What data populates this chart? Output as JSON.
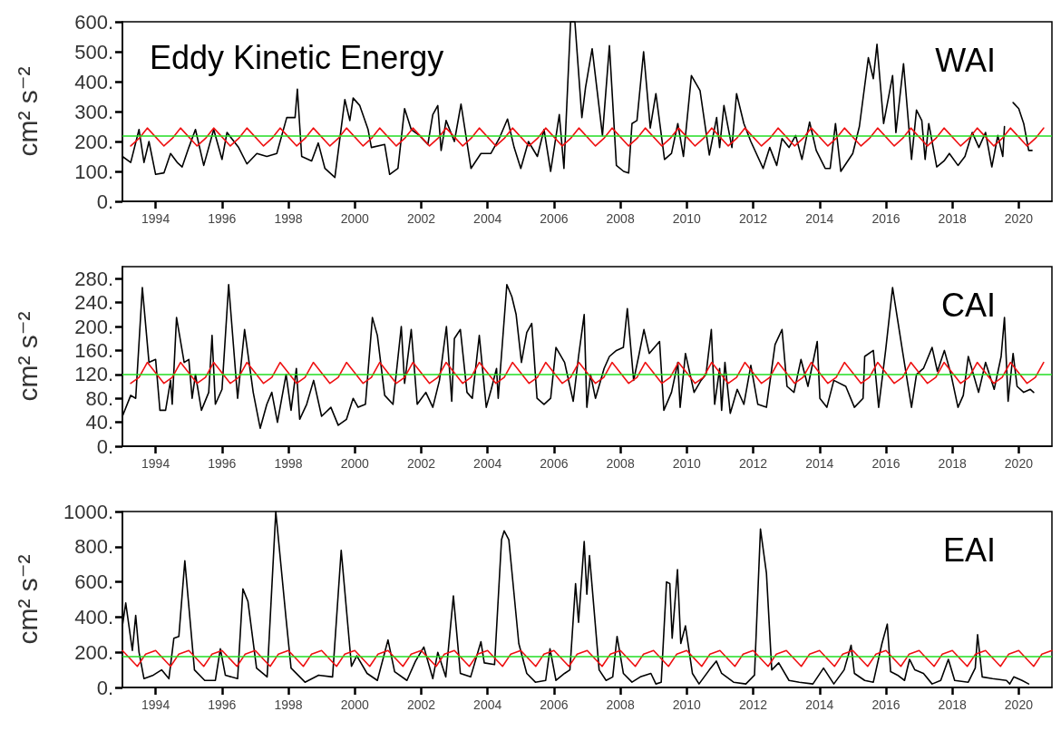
{
  "chart_data": [
    {
      "type": "line",
      "title": "Eddy Kinetic Energy",
      "ylabel": "cm² s⁻²",
      "annotations": [
        "WAI"
      ],
      "xlim": [
        1993,
        2021
      ],
      "xticks": [
        1994,
        1996,
        1998,
        2000,
        2002,
        2004,
        2006,
        2008,
        2010,
        2012,
        2014,
        2016,
        2018,
        2020
      ],
      "ylim": [
        0,
        600
      ],
      "yticks": [
        {
          "value": 0,
          "label": "0."
        },
        {
          "value": 100,
          "label": "100."
        },
        {
          "value": 200,
          "label": "200."
        },
        {
          "value": 300,
          "label": "300."
        },
        {
          "value": 400,
          "label": "400."
        },
        {
          "value": 500,
          "label": "500."
        },
        {
          "value": 600,
          "label": "600."
        }
      ],
      "ref_lines": [
        {
          "axis": "y",
          "value": 220,
          "color": "#22dd22"
        }
      ],
      "series": [
        {
          "color": "#000000",
          "x": [
            1993.0,
            1993.25,
            1993.5,
            1993.65,
            1993.8,
            1994.0,
            1994.25,
            1994.45,
            1994.65,
            1994.8,
            1995.0,
            1995.2,
            1995.45,
            1995.75,
            1996.0,
            1996.15,
            1996.5,
            1996.75,
            1997.05,
            1997.35,
            1997.65,
            1997.95,
            1998.2,
            1998.27,
            1998.4,
            1998.7,
            1998.9,
            1999.1,
            1999.4,
            1999.7,
            1999.85,
            1999.95,
            2000.15,
            2000.4,
            2000.5,
            2000.9,
            2001.05,
            2001.3,
            2001.5,
            2001.7,
            2001.95,
            2002.2,
            2002.35,
            2002.5,
            2002.6,
            2002.75,
            2003.0,
            2003.2,
            2003.5,
            2003.8,
            2004.1,
            2004.35,
            2004.6,
            2004.8,
            2005.0,
            2005.23,
            2005.5,
            2005.7,
            2005.9,
            2006.16,
            2006.3,
            2006.5,
            2006.63,
            2006.84,
            2006.95,
            2007.15,
            2007.46,
            2007.67,
            2007.88,
            2008.1,
            2008.25,
            2008.35,
            2008.5,
            2008.7,
            2008.9,
            2009.07,
            2009.33,
            2009.54,
            2009.73,
            2009.9,
            2010.14,
            2010.4,
            2010.68,
            2010.9,
            2010.99,
            2011.12,
            2011.36,
            2011.5,
            2011.72,
            2011.93,
            2012.3,
            2012.5,
            2012.71,
            2012.87,
            2013.08,
            2013.28,
            2013.47,
            2013.7,
            2013.9,
            2014.17,
            2014.32,
            2014.48,
            2014.64,
            2015.0,
            2015.2,
            2015.47,
            2015.62,
            2015.73,
            2015.93,
            2016.2,
            2016.3,
            2016.53,
            2016.77,
            2016.92,
            2017.08,
            2017.18,
            2017.29,
            2017.53,
            2017.75,
            2017.91,
            2018.17,
            2018.38,
            2018.6,
            2018.8,
            2019.0,
            2019.19,
            2019.37,
            2019.52,
            2019.57,
            2019.7,
            2019.83,
            2020.0,
            2020.15,
            2020.3,
            2020.4
          ],
          "values": [
            150,
            130,
            240,
            130,
            200,
            90,
            95,
            160,
            130,
            115,
            180,
            240,
            120,
            240,
            140,
            230,
            180,
            125,
            160,
            150,
            160,
            280,
            280,
            375,
            150,
            135,
            195,
            110,
            80,
            340,
            270,
            345,
            320,
            240,
            180,
            190,
            90,
            110,
            310,
            240,
            220,
            190,
            290,
            320,
            170,
            270,
            200,
            325,
            110,
            160,
            160,
            210,
            275,
            180,
            110,
            200,
            150,
            240,
            100,
            290,
            110,
            600,
            600,
            280,
            380,
            510,
            220,
            520,
            120,
            100,
            95,
            260,
            270,
            500,
            245,
            360,
            140,
            160,
            260,
            150,
            420,
            370,
            155,
            280,
            180,
            320,
            180,
            360,
            260,
            200,
            110,
            180,
            120,
            210,
            180,
            220,
            140,
            265,
            170,
            110,
            110,
            260,
            100,
            160,
            250,
            480,
            410,
            525,
            260,
            420,
            230,
            460,
            140,
            305,
            270,
            140,
            260,
            115,
            135,
            160,
            120,
            150,
            230,
            180,
            230,
            115,
            220,
            150,
            250,
            null,
            330,
            310,
            260,
            170,
            170
          ]
        },
        {
          "color": "#ee1111",
          "x": [
            1993.25,
            1993.5,
            1993.75,
            1994.25,
            1994.5,
            1994.75,
            1995.25,
            1995.5,
            1995.75,
            1996.25,
            1996.5,
            1996.75,
            1997.25,
            1997.5,
            1997.75,
            1998.25,
            1998.5,
            1998.75,
            1999.25,
            1999.5,
            1999.75,
            2000.25,
            2000.5,
            2000.75,
            2001.25,
            2001.5,
            2001.75,
            2002.25,
            2002.5,
            2002.75,
            2003.25,
            2003.5,
            2003.75,
            2004.25,
            2004.5,
            2004.75,
            2005.25,
            2005.5,
            2005.75,
            2006.25,
            2006.5,
            2006.75,
            2007.25,
            2007.5,
            2007.75,
            2008.25,
            2008.5,
            2008.75,
            2009.25,
            2009.5,
            2009.75,
            2010.25,
            2010.5,
            2010.75,
            2011.25,
            2011.5,
            2011.75,
            2012.25,
            2012.5,
            2012.75,
            2013.25,
            2013.5,
            2013.75,
            2014.25,
            2014.5,
            2014.75,
            2015.25,
            2015.5,
            2015.75,
            2016.25,
            2016.5,
            2016.75,
            2017.25,
            2017.5,
            2017.75,
            2018.25,
            2018.5,
            2018.75,
            2019.25,
            2019.5,
            2019.75,
            2020.25,
            2020.5,
            2020.75
          ],
          "values": [
            185,
            210,
            245,
            185,
            210,
            245,
            185,
            210,
            245,
            185,
            210,
            245,
            185,
            210,
            245,
            185,
            210,
            245,
            185,
            210,
            245,
            185,
            210,
            245,
            185,
            210,
            245,
            185,
            210,
            245,
            185,
            210,
            245,
            185,
            210,
            245,
            185,
            210,
            245,
            185,
            210,
            245,
            185,
            210,
            245,
            185,
            210,
            245,
            185,
            210,
            245,
            185,
            210,
            245,
            185,
            210,
            245,
            185,
            210,
            245,
            185,
            210,
            245,
            185,
            210,
            245,
            185,
            210,
            245,
            185,
            210,
            245,
            185,
            210,
            245,
            185,
            210,
            245,
            185,
            210,
            245,
            185,
            210,
            245
          ]
        }
      ]
    },
    {
      "type": "line",
      "ylabel": "cm² s⁻²",
      "annotations": [
        "CAI"
      ],
      "xlim": [
        1993,
        2021
      ],
      "xticks": [
        1994,
        1996,
        1998,
        2000,
        2002,
        2004,
        2006,
        2008,
        2010,
        2012,
        2014,
        2016,
        2018,
        2020
      ],
      "ylim": [
        0,
        300
      ],
      "yticks": [
        {
          "value": 0,
          "label": "0."
        },
        {
          "value": 40,
          "label": "40."
        },
        {
          "value": 80,
          "label": "80."
        },
        {
          "value": 120,
          "label": "120."
        },
        {
          "value": 160,
          "label": "160."
        },
        {
          "value": 200,
          "label": "200."
        },
        {
          "value": 240,
          "label": "240."
        },
        {
          "value": 280,
          "label": "280."
        }
      ],
      "ref_lines": [
        {
          "axis": "y",
          "value": 120,
          "color": "#22dd22"
        }
      ],
      "series": [
        {
          "color": "#000000",
          "x": [
            1993.0,
            1993.25,
            1993.4,
            1993.6,
            1993.8,
            1994.0,
            1994.13,
            1994.3,
            1994.45,
            1994.5,
            1994.63,
            1994.86,
            1995.0,
            1995.1,
            1995.2,
            1995.38,
            1995.6,
            1995.7,
            1995.8,
            1996.0,
            1996.2,
            1996.47,
            1996.68,
            1996.94,
            1997.15,
            1997.35,
            1997.5,
            1997.67,
            1997.8,
            1997.93,
            1998.08,
            1998.24,
            1998.34,
            1998.55,
            1998.76,
            1999.0,
            1999.28,
            1999.5,
            1999.75,
            1999.95,
            2000.1,
            2000.32,
            2000.53,
            2000.68,
            2000.9,
            2001.15,
            2001.4,
            2001.5,
            2001.7,
            2001.88,
            2002.14,
            2002.35,
            2002.55,
            2002.76,
            2002.92,
            2003.0,
            2003.18,
            2003.38,
            2003.54,
            2003.75,
            2003.96,
            2004.11,
            2004.27,
            2004.32,
            2004.58,
            2004.73,
            2004.86,
            2005.02,
            2005.18,
            2005.33,
            2005.49,
            2005.7,
            2005.9,
            2006.06,
            2006.32,
            2006.58,
            2006.74,
            2006.91,
            2006.99,
            2007.1,
            2007.25,
            2007.51,
            2007.67,
            2007.88,
            2008.09,
            2008.21,
            2008.4,
            2008.55,
            2008.71,
            2008.87,
            2009.18,
            2009.31,
            2009.54,
            2009.73,
            2009.8,
            2009.96,
            2010.22,
            2010.43,
            2010.58,
            2010.74,
            2010.84,
            2010.99,
            2011.05,
            2011.15,
            2011.31,
            2011.52,
            2011.72,
            2011.93,
            2012.14,
            2012.4,
            2012.66,
            2012.87,
            2013.02,
            2013.23,
            2013.44,
            2013.65,
            2013.93,
            2014.01,
            2014.22,
            2014.43,
            2014.79,
            2015.05,
            2015.31,
            2015.36,
            2015.62,
            2015.78,
            2015.99,
            2016.2,
            2016.51,
            2016.77,
            2016.92,
            2017.13,
            2017.39,
            2017.55,
            2017.76,
            2017.96,
            2018.17,
            2018.33,
            2018.48,
            2018.79,
            2019.0,
            2019.26,
            2019.47,
            2019.57,
            2019.68,
            2019.83,
            2019.95,
            2020.15,
            2020.35,
            2020.45
          ],
          "values": [
            50,
            85,
            80,
            265,
            140,
            145,
            60,
            60,
            110,
            70,
            215,
            140,
            145,
            80,
            120,
            60,
            90,
            185,
            70,
            95,
            270,
            80,
            195,
            90,
            30,
            70,
            90,
            40,
            80,
            120,
            60,
            130,
            45,
            70,
            110,
            50,
            65,
            35,
            45,
            80,
            65,
            70,
            215,
            185,
            85,
            70,
            200,
            105,
            195,
            70,
            90,
            65,
            110,
            200,
            75,
            180,
            195,
            90,
            80,
            185,
            65,
            95,
            130,
            80,
            270,
            250,
            220,
            140,
            190,
            205,
            80,
            70,
            80,
            165,
            140,
            75,
            150,
            220,
            65,
            120,
            80,
            130,
            150,
            160,
            165,
            230,
            110,
            150,
            195,
            155,
            175,
            60,
            90,
            140,
            65,
            155,
            90,
            110,
            120,
            195,
            70,
            130,
            60,
            140,
            55,
            95,
            70,
            135,
            70,
            65,
            170,
            195,
            100,
            90,
            145,
            100,
            175,
            80,
            65,
            110,
            100,
            65,
            80,
            150,
            160,
            65,
            160,
            265,
            155,
            65,
            120,
            130,
            165,
            125,
            160,
            120,
            65,
            85,
            150,
            90,
            140,
            95,
            150,
            215,
            75,
            155,
            100,
            90,
            95,
            90
          ]
        },
        {
          "color": "#ee1111",
          "x": [
            1993.25,
            1993.5,
            1993.75,
            1994.25,
            1994.5,
            1994.75,
            1995.25,
            1995.5,
            1995.75,
            1996.25,
            1996.5,
            1996.75,
            1997.25,
            1997.5,
            1997.75,
            1998.25,
            1998.5,
            1998.75,
            1999.25,
            1999.5,
            1999.75,
            2000.25,
            2000.5,
            2000.75,
            2001.25,
            2001.5,
            2001.75,
            2002.25,
            2002.5,
            2002.75,
            2003.25,
            2003.5,
            2003.75,
            2004.25,
            2004.5,
            2004.75,
            2005.25,
            2005.5,
            2005.75,
            2006.25,
            2006.5,
            2006.75,
            2007.25,
            2007.5,
            2007.75,
            2008.25,
            2008.5,
            2008.75,
            2009.25,
            2009.5,
            2009.75,
            2010.25,
            2010.5,
            2010.75,
            2011.25,
            2011.5,
            2011.75,
            2012.25,
            2012.5,
            2012.75,
            2013.25,
            2013.5,
            2013.75,
            2014.25,
            2014.5,
            2014.75,
            2015.25,
            2015.5,
            2015.75,
            2016.25,
            2016.5,
            2016.75,
            2017.25,
            2017.5,
            2017.75,
            2018.25,
            2018.5,
            2018.75,
            2019.25,
            2019.5,
            2019.75,
            2020.25,
            2020.5,
            2020.75
          ],
          "values": [
            105,
            115,
            140,
            105,
            115,
            140,
            105,
            115,
            140,
            105,
            115,
            140,
            105,
            115,
            140,
            105,
            115,
            140,
            105,
            115,
            140,
            105,
            115,
            140,
            105,
            115,
            140,
            105,
            115,
            140,
            105,
            115,
            140,
            105,
            115,
            140,
            105,
            115,
            140,
            105,
            115,
            140,
            105,
            115,
            140,
            105,
            115,
            140,
            105,
            115,
            140,
            105,
            115,
            140,
            105,
            115,
            140,
            105,
            115,
            140,
            105,
            115,
            140,
            105,
            115,
            140,
            105,
            115,
            140,
            105,
            115,
            140,
            105,
            115,
            140,
            105,
            115,
            140,
            105,
            115,
            140,
            105,
            115,
            140
          ]
        }
      ]
    },
    {
      "type": "line",
      "ylabel": "cm² s⁻²",
      "annotations": [
        "EAI"
      ],
      "xlim": [
        1993,
        2021
      ],
      "xticks": [
        1994,
        1996,
        1998,
        2000,
        2002,
        2004,
        2006,
        2008,
        2010,
        2012,
        2014,
        2016,
        2018,
        2020
      ],
      "ylim": [
        0,
        1000
      ],
      "yticks": [
        {
          "value": 0,
          "label": "0."
        },
        {
          "value": 200,
          "label": "200."
        },
        {
          "value": 400,
          "label": "400."
        },
        {
          "value": 600,
          "label": "600."
        },
        {
          "value": 800,
          "label": "800."
        },
        {
          "value": 1000,
          "label": "1000."
        }
      ],
      "ref_lines": [
        {
          "axis": "y",
          "value": 175,
          "color": "#22dd22"
        }
      ],
      "series": [
        {
          "color": "#000000",
          "x": [
            1993.0,
            1993.1,
            1993.3,
            1993.4,
            1993.5,
            1993.65,
            1993.93,
            1994.18,
            1994.4,
            1994.55,
            1994.7,
            1994.88,
            1995.17,
            1995.48,
            1995.8,
            1995.95,
            1996.1,
            1996.47,
            1996.63,
            1996.78,
            1997.04,
            1997.36,
            1997.62,
            1997.93,
            1998.08,
            1998.5,
            1998.91,
            1999.33,
            1999.59,
            1999.9,
            2000.06,
            2000.37,
            2000.68,
            2001.0,
            2001.2,
            2001.57,
            2001.83,
            2002.08,
            2002.35,
            2002.5,
            2002.74,
            2002.97,
            2003.18,
            2003.49,
            2003.8,
            2003.9,
            2004.21,
            2004.42,
            2004.5,
            2004.64,
            2004.94,
            2005.18,
            2005.44,
            2005.75,
            2005.88,
            2006.06,
            2006.32,
            2006.48,
            2006.65,
            2006.74,
            2006.91,
            2006.99,
            2007.07,
            2007.36,
            2007.57,
            2007.77,
            2007.9,
            2008.09,
            2008.35,
            2008.6,
            2008.92,
            2009.07,
            2009.23,
            2009.39,
            2009.49,
            2009.56,
            2009.72,
            2009.82,
            2009.96,
            2010.17,
            2010.37,
            2010.68,
            2010.89,
            2011.05,
            2011.41,
            2011.78,
            2012.04,
            2012.22,
            2012.4,
            2012.56,
            2012.77,
            2013.08,
            2013.39,
            2013.8,
            2014.12,
            2014.43,
            2014.74,
            2014.95,
            2015.05,
            2015.36,
            2015.62,
            2015.88,
            2016.04,
            2016.14,
            2016.35,
            2016.56,
            2016.71,
            2016.87,
            2017.13,
            2017.39,
            2017.65,
            2017.88,
            2018.07,
            2018.48,
            2018.69,
            2018.76,
            2018.9,
            2019.21,
            2019.63,
            2019.73,
            2019.85,
            2020.1,
            2020.3
          ],
          "values": [
            350,
            480,
            210,
            410,
            200,
            50,
            70,
            100,
            50,
            280,
            290,
            720,
            100,
            40,
            40,
            220,
            70,
            50,
            560,
            490,
            110,
            60,
            1000,
            390,
            110,
            30,
            70,
            60,
            780,
            120,
            180,
            80,
            40,
            270,
            90,
            40,
            150,
            230,
            50,
            200,
            60,
            520,
            80,
            60,
            260,
            140,
            130,
            840,
            890,
            840,
            250,
            80,
            30,
            40,
            220,
            40,
            80,
            100,
            590,
            370,
            830,
            530,
            750,
            100,
            40,
            60,
            290,
            80,
            30,
            60,
            80,
            20,
            30,
            600,
            590,
            280,
            670,
            250,
            350,
            80,
            20,
            100,
            150,
            80,
            30,
            20,
            70,
            900,
            650,
            100,
            140,
            40,
            30,
            20,
            110,
            20,
            100,
            240,
            80,
            40,
            30,
            250,
            360,
            90,
            70,
            40,
            160,
            100,
            80,
            20,
            40,
            160,
            40,
            30,
            110,
            300,
            60,
            50,
            40,
            20,
            60,
            40,
            20
          ]
        },
        {
          "color": "#ee1111",
          "x": [
            1993.0,
            1993.45,
            1993.7,
            1994.0,
            1994.45,
            1994.7,
            1995.0,
            1995.45,
            1995.7,
            1996.0,
            1996.45,
            1996.7,
            1997.0,
            1997.45,
            1997.7,
            1998.0,
            1998.45,
            1998.7,
            1999.0,
            1999.45,
            1999.7,
            2000.0,
            2000.45,
            2000.7,
            2001.0,
            2001.45,
            2001.7,
            2002.0,
            2002.45,
            2002.7,
            2003.0,
            2003.45,
            2003.7,
            2004.0,
            2004.45,
            2004.7,
            2005.0,
            2005.45,
            2005.7,
            2006.0,
            2006.45,
            2006.7,
            2007.0,
            2007.45,
            2007.7,
            2008.0,
            2008.45,
            2008.7,
            2009.0,
            2009.45,
            2009.7,
            2010.0,
            2010.45,
            2010.7,
            2011.0,
            2011.45,
            2011.7,
            2012.0,
            2012.45,
            2012.7,
            2013.0,
            2013.45,
            2013.7,
            2014.0,
            2014.45,
            2014.7,
            2015.0,
            2015.45,
            2015.7,
            2016.0,
            2016.45,
            2016.7,
            2017.0,
            2017.45,
            2017.7,
            2018.0,
            2018.45,
            2018.7,
            2019.0,
            2019.45,
            2019.7,
            2020.0,
            2020.45,
            2020.7,
            2021.0
          ],
          "values": [
            210,
            120,
            190,
            210,
            120,
            190,
            210,
            120,
            190,
            210,
            120,
            190,
            210,
            120,
            190,
            210,
            120,
            190,
            210,
            120,
            190,
            210,
            120,
            190,
            210,
            120,
            190,
            210,
            120,
            190,
            210,
            120,
            190,
            210,
            120,
            190,
            210,
            120,
            190,
            210,
            120,
            190,
            210,
            120,
            190,
            210,
            120,
            190,
            210,
            120,
            190,
            210,
            120,
            190,
            210,
            120,
            190,
            210,
            120,
            190,
            210,
            120,
            190,
            210,
            120,
            190,
            210,
            120,
            190,
            210,
            120,
            190,
            210,
            120,
            190,
            210,
            120,
            190,
            210,
            120,
            190,
            210,
            120,
            190,
            210
          ]
        }
      ]
    }
  ]
}
